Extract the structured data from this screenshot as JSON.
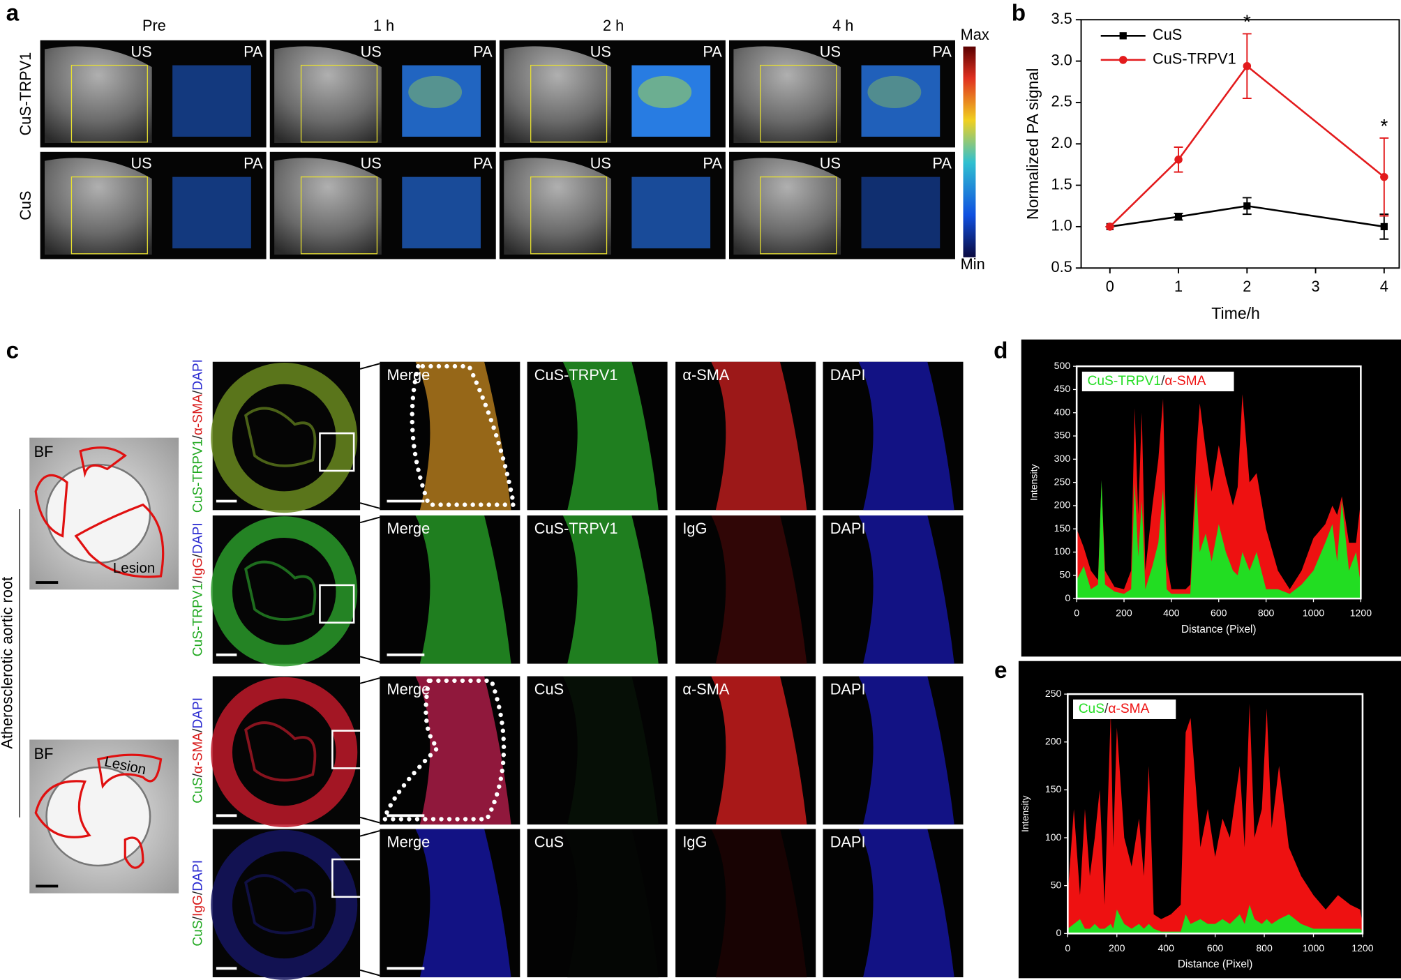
{
  "panel_labels": [
    "a",
    "b",
    "c",
    "d",
    "e"
  ],
  "panel_a": {
    "columns": [
      "Pre",
      "1 h",
      "2 h",
      "4 h"
    ],
    "rows": [
      "CuS-TRPV1",
      "CuS"
    ],
    "modes": [
      "US",
      "PA"
    ],
    "colorbar": {
      "max": "Max",
      "min": "Min"
    }
  },
  "panel_c": {
    "bf": [
      {
        "label": "BF",
        "lesion": "Lesion"
      },
      {
        "label": "BF",
        "lesion": "Lesion"
      }
    ],
    "side_label": "Atherosclerotic aortic root",
    "rows": [
      {
        "stain": [
          "CuS-TRPV1",
          "/",
          "α-SMA",
          "/",
          "DAPI"
        ],
        "stain_colors": [
          "#1fa81f",
          "#222222",
          "#d81b1b",
          "#222222",
          "#2a2ad0"
        ],
        "channels": [
          "Merge",
          "CuS-TRPV1",
          "α-SMA",
          "DAPI"
        ]
      },
      {
        "stain": [
          "CuS-TRPV1",
          "/",
          "IgG",
          "/",
          "DAPI"
        ],
        "stain_colors": [
          "#1fa81f",
          "#222222",
          "#d81b1b",
          "#222222",
          "#2a2ad0"
        ],
        "channels": [
          "Merge",
          "CuS-TRPV1",
          "IgG",
          "DAPI"
        ]
      },
      {
        "stain": [
          "CuS",
          "/",
          "α-SMA",
          "/",
          "DAPI"
        ],
        "stain_colors": [
          "#1fa81f",
          "#222222",
          "#d81b1b",
          "#222222",
          "#2a2ad0"
        ],
        "channels": [
          "Merge",
          "CuS",
          "α-SMA",
          "DAPI"
        ]
      },
      {
        "stain": [
          "CuS",
          "/",
          "IgG",
          "/",
          "DAPI"
        ],
        "stain_colors": [
          "#1fa81f",
          "#222222",
          "#d81b1b",
          "#222222",
          "#2a2ad0"
        ],
        "channels": [
          "Merge",
          "CuS",
          "IgG",
          "DAPI"
        ]
      }
    ]
  },
  "chart_data": [
    {
      "type": "line",
      "x": [
        0,
        1,
        2,
        4
      ],
      "xlim": [
        -0.42,
        4.22
      ],
      "xticks": [
        0,
        1,
        2,
        3,
        4
      ],
      "ylim": [
        0.5,
        3.5
      ],
      "yticks": [
        {
          "value": 0.5,
          "label": "0.5"
        },
        {
          "value": 1,
          "label": "1.0"
        },
        {
          "value": 1.5,
          "label": "1.5"
        },
        {
          "value": 2,
          "label": "2.0"
        },
        {
          "value": 2.5,
          "label": "2.5"
        },
        {
          "value": 3,
          "label": "3.0"
        },
        {
          "value": 3.5,
          "label": "3.5"
        }
      ],
      "xlabel": "Time/h",
      "ylabel": "Normalized PA signal",
      "series": [
        {
          "name": "CuS",
          "color": "#000000",
          "values": [
            1,
            1.12,
            1.25,
            1.0
          ],
          "errors": [
            0,
            0.04,
            0.1,
            0.15
          ]
        },
        {
          "name": "CuS-TRPV1",
          "color": "#e31a1c",
          "values": [
            1,
            1.81,
            2.94,
            1.6
          ],
          "errors": [
            0,
            0.15,
            0.39,
            0.47
          ]
        }
      ],
      "annotations": [
        {
          "text": "*",
          "x": 2
        },
        {
          "text": "*",
          "x": 4
        }
      ]
    },
    {
      "type": "area",
      "xlabel": "Distance (Pixel)",
      "ylabel": "Intensity",
      "legend_separator": "/",
      "xlim": [
        0,
        1200
      ],
      "xticks": [
        0,
        200,
        400,
        600,
        800,
        1000,
        1200
      ],
      "ylim": [
        0,
        500
      ],
      "yticks": [
        0,
        50,
        100,
        150,
        200,
        250,
        300,
        350,
        400,
        450,
        500
      ],
      "x": [
        0,
        30,
        60,
        90,
        105,
        120,
        160,
        200,
        230,
        245,
        260,
        275,
        290,
        320,
        345,
        365,
        380,
        400,
        430,
        460,
        480,
        505,
        520,
        545,
        570,
        600,
        630,
        660,
        680,
        700,
        730,
        760,
        800,
        850,
        900,
        950,
        1000,
        1050,
        1080,
        1100,
        1120,
        1150,
        1180,
        1200
      ],
      "series": [
        {
          "name": "CuS-TRPV1",
          "color": "#22dd22",
          "values": [
            40,
            70,
            20,
            30,
            255,
            30,
            15,
            10,
            20,
            250,
            90,
            210,
            20,
            70,
            120,
            235,
            20,
            10,
            10,
            10,
            10,
            250,
            100,
            140,
            80,
            160,
            100,
            60,
            50,
            100,
            60,
            100,
            20,
            20,
            10,
            30,
            60,
            120,
            160,
            80,
            210,
            60,
            100,
            30
          ]
        },
        {
          "name": "α-SMA",
          "color": "#ee1111",
          "values": [
            150,
            110,
            60,
            40,
            250,
            60,
            25,
            20,
            60,
            410,
            180,
            400,
            60,
            200,
            300,
            430,
            80,
            20,
            20,
            20,
            30,
            310,
            420,
            320,
            230,
            330,
            260,
            200,
            240,
            440,
            250,
            270,
            150,
            60,
            20,
            60,
            130,
            160,
            200,
            180,
            220,
            120,
            120,
            210
          ]
        }
      ]
    },
    {
      "type": "area",
      "xlabel": "Distance (Pixel)",
      "ylabel": "Intensity",
      "legend_separator": "/",
      "xlim": [
        0,
        1200
      ],
      "xticks": [
        0,
        200,
        400,
        600,
        800,
        1000,
        1200
      ],
      "ylim": [
        0,
        250
      ],
      "yticks": [
        0,
        50,
        100,
        150,
        200,
        250
      ],
      "x": [
        0,
        25,
        50,
        70,
        90,
        110,
        130,
        150,
        175,
        185,
        200,
        230,
        260,
        290,
        310,
        330,
        350,
        380,
        420,
        460,
        480,
        500,
        540,
        570,
        600,
        630,
        660,
        700,
        720,
        740,
        760,
        790,
        810,
        830,
        860,
        900,
        950,
        1000,
        1050,
        1100,
        1150,
        1190,
        1200
      ],
      "series": [
        {
          "name": "CuS",
          "color": "#22dd22",
          "values": [
            5,
            10,
            15,
            5,
            5,
            10,
            5,
            5,
            10,
            5,
            25,
            10,
            5,
            10,
            5,
            10,
            5,
            2,
            2,
            2,
            20,
            10,
            15,
            10,
            10,
            15,
            10,
            20,
            10,
            30,
            15,
            10,
            15,
            10,
            15,
            20,
            10,
            5,
            5,
            5,
            5,
            5,
            2
          ]
        },
        {
          "name": "α-SMA",
          "color": "#ee1111",
          "values": [
            40,
            130,
            40,
            130,
            60,
            100,
            150,
            30,
            230,
            90,
            215,
            100,
            70,
            120,
            60,
            175,
            20,
            15,
            20,
            30,
            210,
            225,
            90,
            130,
            80,
            120,
            100,
            175,
            90,
            240,
            100,
            130,
            235,
            110,
            175,
            90,
            60,
            40,
            25,
            40,
            30,
            25,
            10
          ]
        }
      ]
    }
  ]
}
